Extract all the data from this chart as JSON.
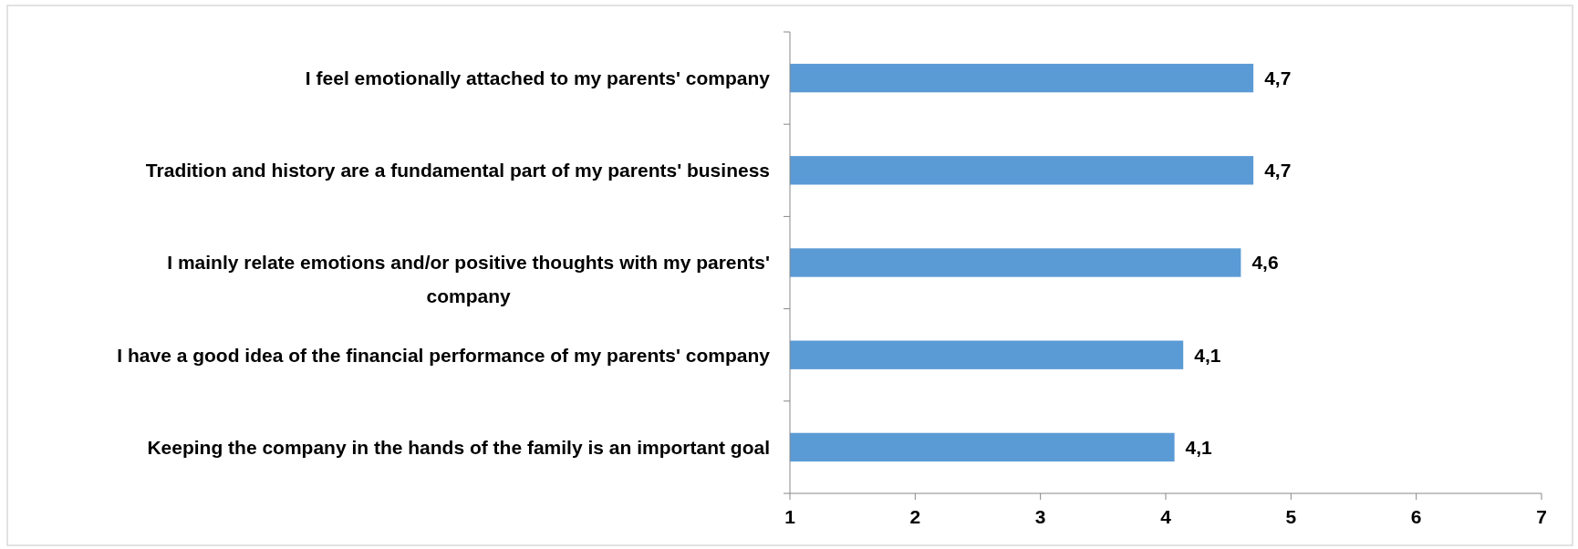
{
  "chart_data": {
    "type": "bar",
    "orientation": "horizontal",
    "categories": [
      "I feel emotionally attached to my parents' company",
      "Tradition and history are a fundamental part of my parents' business",
      "I mainly relate emotions and/or positive thoughts with my parents' company",
      "I have a good idea of the financial performance of my parents' company",
      "Keeping the company in the hands of the family is an important goal"
    ],
    "values": [
      4.7,
      4.7,
      4.6,
      4.14,
      4.07
    ],
    "value_labels": [
      "4,7",
      "4,7",
      "4,6",
      "4,1",
      "4,1"
    ],
    "color": "#5b9bd5",
    "xlim": [
      1,
      7
    ],
    "xticks": [
      1,
      2,
      3,
      4,
      5,
      6,
      7
    ],
    "grid": false
  }
}
